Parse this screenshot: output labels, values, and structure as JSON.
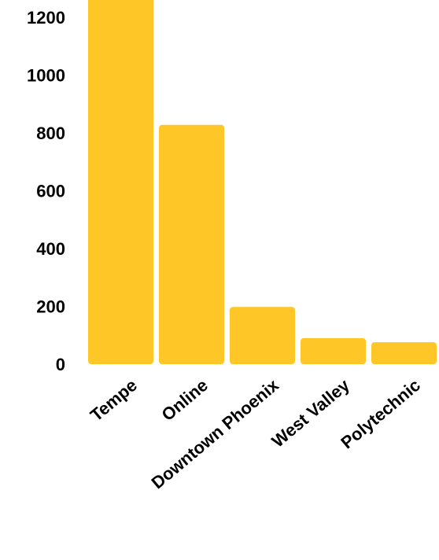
{
  "chart_data": {
    "type": "bar",
    "categories": [
      "Tempe",
      "Online",
      "Downtown Phoenix",
      "West Valley",
      "Polytechnic"
    ],
    "values": [
      1300,
      828,
      198,
      90,
      76
    ],
    "yticks": [
      "0",
      "200",
      "400",
      "600",
      "800",
      "1000",
      "1200"
    ],
    "ylim": [
      0,
      1250
    ],
    "grid": false,
    "bar_color": "#FFC627"
  }
}
